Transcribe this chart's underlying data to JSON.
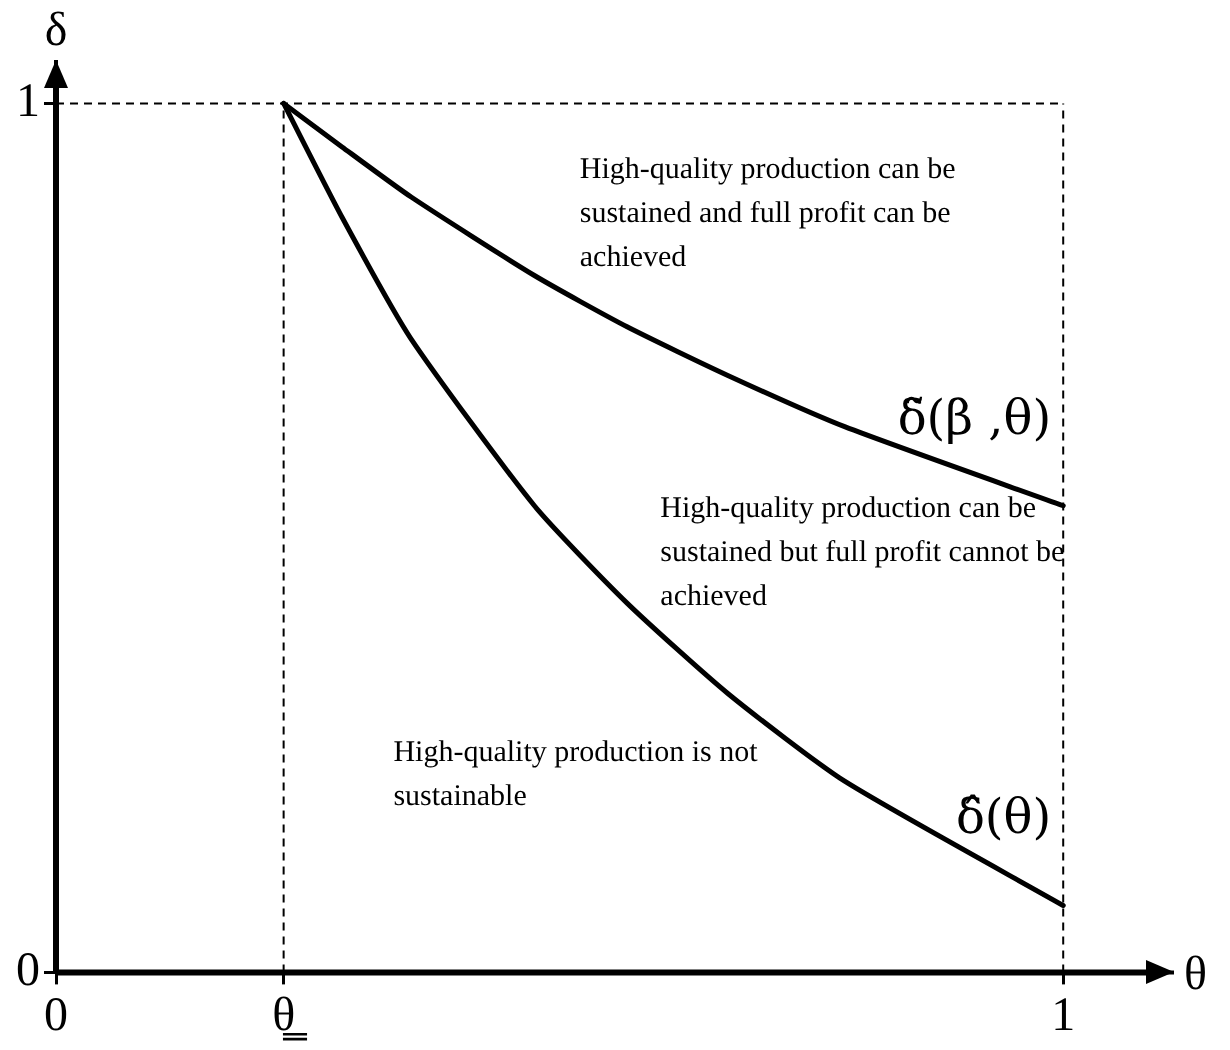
{
  "chart_data": {
    "type": "line",
    "xlabel": "θ",
    "ylabel": "δ",
    "xlim": [
      0,
      1.11
    ],
    "ylim": [
      0,
      1.05
    ],
    "xticks": [
      0,
      {
        "value": 0.226,
        "label": "θ̳"
      },
      1
    ],
    "yticks": [
      0,
      1
    ],
    "grid": false,
    "legend": false,
    "marker": "none",
    "line_style": "solid",
    "series": [
      {
        "name": "δ̃(β ,θ)",
        "color": "#000000",
        "x": [
          0.226,
          0.284,
          0.353,
          0.475,
          0.567,
          0.667,
          0.783,
          1.0
        ],
        "values": [
          1.0,
          0.95,
          0.892,
          0.802,
          0.743,
          0.687,
          0.628,
          0.537
        ]
      },
      {
        "name": "δ̂(θ)",
        "color": "#000000",
        "x": [
          0.226,
          0.284,
          0.352,
          0.475,
          0.567,
          0.667,
          0.783,
          1.0
        ],
        "values": [
          1.0,
          0.869,
          0.73,
          0.537,
          0.425,
          0.321,
          0.22,
          0.077
        ]
      }
    ],
    "ref_lines": [
      {
        "axis": "y",
        "value": 1.0,
        "color": "#000000",
        "line_style": "dashed"
      },
      {
        "axis": "x",
        "value": 0.226,
        "color": "#000000",
        "line_style": "dashed"
      },
      {
        "axis": "x",
        "value": 1.0,
        "color": "#000000",
        "line_style": "dashed"
      }
    ],
    "annotations": [
      "High-quality production can be sustained and full profit can be achieved",
      "High-quality production can be sustained but full profit cannot be achieved",
      "High-quality production is not sustainable"
    ]
  }
}
